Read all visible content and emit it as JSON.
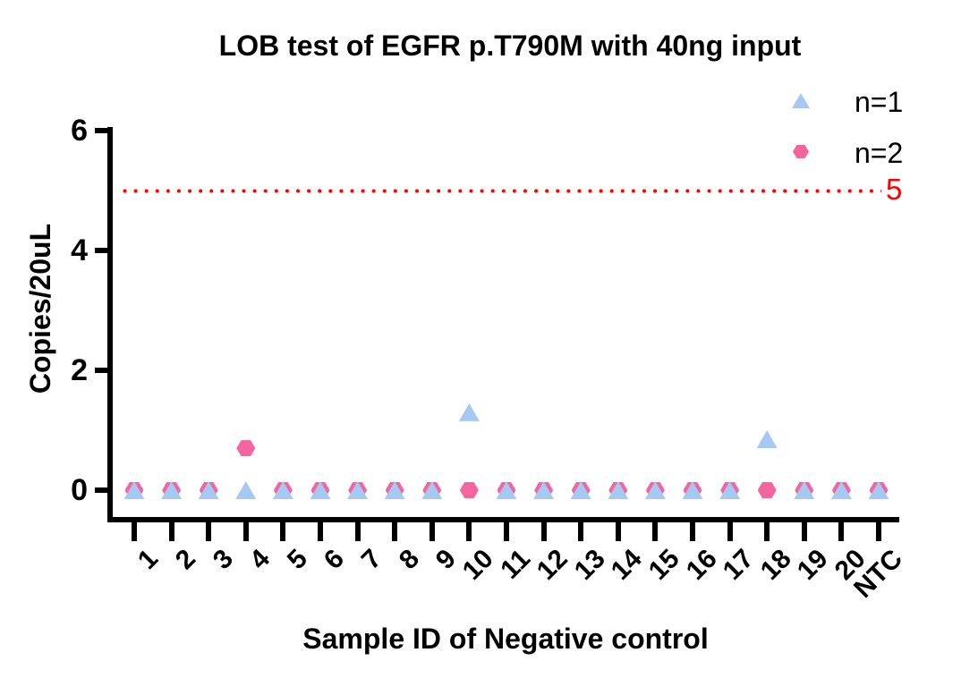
{
  "chart_data": {
    "type": "scatter",
    "title": "LOB test of EGFR p.T790M with 40ng input",
    "xlabel": "Sample ID of Negative control",
    "ylabel": "Copies/20uL",
    "ylim": [
      0,
      6
    ],
    "yticks": [
      0,
      2,
      4,
      6
    ],
    "categories": [
      "1",
      "2",
      "3",
      "4",
      "5",
      "6",
      "7",
      "8",
      "9",
      "10",
      "11",
      "12",
      "13",
      "14",
      "15",
      "16",
      "17",
      "18",
      "19",
      "20",
      "NTC"
    ],
    "series": [
      {
        "name": "n=1",
        "marker": "triangle",
        "color": "#A6C9F4",
        "values": [
          0,
          0,
          0,
          0,
          0,
          0,
          0,
          0,
          0,
          1.3,
          0,
          0,
          0,
          0,
          0,
          0,
          0,
          0.85,
          0,
          0,
          0
        ]
      },
      {
        "name": "n=2",
        "marker": "hexagon",
        "color": "#F4649E",
        "values": [
          0,
          0,
          0,
          0.7,
          0,
          0,
          0,
          0,
          0,
          0,
          0,
          0,
          0,
          0,
          0,
          0,
          0,
          0,
          0,
          0,
          0
        ]
      }
    ],
    "reference_line": {
      "y": 5,
      "label": "5",
      "color": "#FF0000",
      "style": "dotted"
    },
    "legend_position": "top-right",
    "grid": false
  }
}
